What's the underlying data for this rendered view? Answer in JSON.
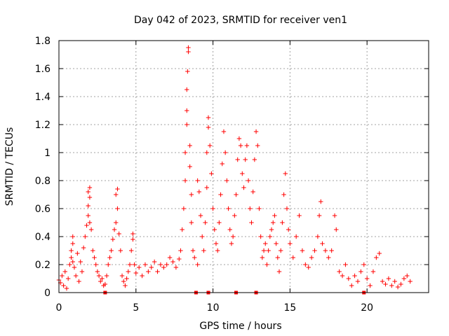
{
  "chart_data": {
    "type": "scatter",
    "title": "Day 042 of 2023, SRMTID for receiver ven1",
    "xlabel": "GPS time / hours",
    "ylabel": "SRMTID / TECUs",
    "xlim": [
      0,
      24
    ],
    "ylim": [
      0,
      1.8
    ],
    "xticks": [
      0,
      5,
      10,
      15,
      20
    ],
    "yticks": [
      0,
      0.2,
      0.4,
      0.6,
      0.8,
      1,
      1.2,
      1.4,
      1.6,
      1.8
    ],
    "xtick_labels": [
      "0",
      "5",
      "10",
      "15",
      "20"
    ],
    "ytick_labels": [
      "0",
      "0.2",
      "0.4",
      "0.6",
      "0.8",
      "1",
      "1.2",
      "1.4",
      "1.6",
      "1.8"
    ],
    "grid": true,
    "series_color": "#ff0000",
    "marker": "plus",
    "series": [
      {
        "name": "SRMTID",
        "points": [
          [
            0.0,
            0.09
          ],
          [
            0.1,
            0.07
          ],
          [
            0.2,
            0.12
          ],
          [
            0.3,
            0.05
          ],
          [
            0.4,
            0.15
          ],
          [
            0.5,
            0.03
          ],
          [
            0.6,
            0.1
          ],
          [
            0.7,
            0.2
          ],
          [
            0.8,
            0.25
          ],
          [
            0.9,
            0.22
          ],
          [
            0.8,
            0.3
          ],
          [
            0.9,
            0.35
          ],
          [
            0.9,
            0.4
          ],
          [
            1.0,
            0.18
          ],
          [
            1.1,
            0.12
          ],
          [
            1.2,
            0.28
          ],
          [
            1.3,
            0.08
          ],
          [
            1.4,
            0.22
          ],
          [
            1.5,
            0.15
          ],
          [
            1.6,
            0.32
          ],
          [
            1.7,
            0.4
          ],
          [
            1.8,
            0.48
          ],
          [
            1.9,
            0.55
          ],
          [
            1.9,
            0.62
          ],
          [
            1.9,
            0.72
          ],
          [
            2.0,
            0.68
          ],
          [
            2.0,
            0.75
          ],
          [
            2.0,
            0.5
          ],
          [
            2.1,
            0.45
          ],
          [
            2.2,
            0.3
          ],
          [
            2.3,
            0.25
          ],
          [
            2.4,
            0.2
          ],
          [
            2.5,
            0.15
          ],
          [
            2.6,
            0.12
          ],
          [
            2.7,
            0.08
          ],
          [
            2.8,
            0.1
          ],
          [
            2.9,
            0.05
          ],
          [
            3.0,
            0.06
          ],
          [
            3.1,
            0.12
          ],
          [
            3.2,
            0.2
          ],
          [
            3.3,
            0.25
          ],
          [
            3.4,
            0.3
          ],
          [
            3.5,
            0.38
          ],
          [
            3.6,
            0.45
          ],
          [
            3.7,
            0.5
          ],
          [
            3.7,
            0.7
          ],
          [
            3.8,
            0.74
          ],
          [
            3.8,
            0.6
          ],
          [
            3.9,
            0.42
          ],
          [
            4.0,
            0.3
          ],
          [
            4.1,
            0.12
          ],
          [
            4.2,
            0.08
          ],
          [
            4.3,
            0.05
          ],
          [
            4.4,
            0.1
          ],
          [
            4.5,
            0.15
          ],
          [
            4.6,
            0.2
          ],
          [
            4.7,
            0.3
          ],
          [
            4.8,
            0.38
          ],
          [
            4.8,
            0.42
          ],
          [
            4.9,
            0.2
          ],
          [
            5.0,
            0.14
          ],
          [
            5.2,
            0.18
          ],
          [
            5.4,
            0.12
          ],
          [
            5.6,
            0.2
          ],
          [
            5.8,
            0.15
          ],
          [
            6.0,
            0.18
          ],
          [
            6.2,
            0.22
          ],
          [
            6.4,
            0.15
          ],
          [
            6.6,
            0.2
          ],
          [
            6.8,
            0.18
          ],
          [
            7.0,
            0.2
          ],
          [
            7.2,
            0.25
          ],
          [
            7.4,
            0.22
          ],
          [
            7.6,
            0.18
          ],
          [
            7.8,
            0.24
          ],
          [
            7.9,
            0.3
          ],
          [
            8.0,
            0.45
          ],
          [
            8.1,
            0.6
          ],
          [
            8.2,
            0.8
          ],
          [
            8.2,
            1.0
          ],
          [
            8.3,
            1.2
          ],
          [
            8.3,
            1.3
          ],
          [
            8.3,
            1.45
          ],
          [
            8.35,
            1.58
          ],
          [
            8.4,
            1.72
          ],
          [
            8.4,
            1.75
          ],
          [
            8.5,
            1.05
          ],
          [
            8.5,
            0.9
          ],
          [
            8.6,
            0.7
          ],
          [
            8.6,
            0.5
          ],
          [
            8.7,
            0.3
          ],
          [
            8.8,
            0.25
          ],
          [
            9.0,
            0.2
          ],
          [
            9.0,
            0.8
          ],
          [
            9.1,
            0.72
          ],
          [
            9.2,
            0.55
          ],
          [
            9.3,
            0.4
          ],
          [
            9.4,
            0.3
          ],
          [
            9.5,
            0.5
          ],
          [
            9.6,
            0.75
          ],
          [
            9.6,
            1.0
          ],
          [
            9.7,
            1.18
          ],
          [
            9.7,
            1.25
          ],
          [
            9.8,
            1.05
          ],
          [
            9.9,
            0.85
          ],
          [
            10.0,
            0.6
          ],
          [
            10.1,
            0.45
          ],
          [
            10.2,
            0.35
          ],
          [
            10.3,
            0.3
          ],
          [
            10.4,
            0.5
          ],
          [
            10.5,
            0.7
          ],
          [
            10.6,
            0.92
          ],
          [
            10.7,
            1.15
          ],
          [
            10.8,
            1.0
          ],
          [
            10.9,
            0.8
          ],
          [
            11.0,
            0.6
          ],
          [
            11.1,
            0.45
          ],
          [
            11.2,
            0.35
          ],
          [
            11.3,
            0.4
          ],
          [
            11.4,
            0.55
          ],
          [
            11.5,
            0.7
          ],
          [
            11.6,
            0.95
          ],
          [
            11.7,
            1.1
          ],
          [
            11.8,
            1.05
          ],
          [
            11.9,
            0.85
          ],
          [
            12.0,
            0.75
          ],
          [
            12.1,
            0.95
          ],
          [
            12.2,
            1.05
          ],
          [
            12.3,
            0.8
          ],
          [
            12.4,
            0.6
          ],
          [
            12.5,
            0.5
          ],
          [
            12.6,
            0.72
          ],
          [
            12.7,
            0.95
          ],
          [
            12.8,
            1.15
          ],
          [
            12.9,
            1.05
          ],
          [
            13.0,
            0.6
          ],
          [
            13.1,
            0.4
          ],
          [
            13.2,
            0.25
          ],
          [
            13.3,
            0.3
          ],
          [
            13.4,
            0.35
          ],
          [
            13.5,
            0.2
          ],
          [
            13.6,
            0.3
          ],
          [
            13.7,
            0.4
          ],
          [
            13.8,
            0.45
          ],
          [
            13.9,
            0.5
          ],
          [
            14.0,
            0.55
          ],
          [
            14.1,
            0.35
          ],
          [
            14.2,
            0.25
          ],
          [
            14.3,
            0.15
          ],
          [
            14.4,
            0.3
          ],
          [
            14.5,
            0.5
          ],
          [
            14.6,
            0.7
          ],
          [
            14.7,
            0.85
          ],
          [
            14.8,
            0.6
          ],
          [
            14.9,
            0.45
          ],
          [
            15.0,
            0.35
          ],
          [
            15.2,
            0.25
          ],
          [
            15.4,
            0.4
          ],
          [
            15.6,
            0.55
          ],
          [
            15.8,
            0.3
          ],
          [
            16.0,
            0.2
          ],
          [
            16.2,
            0.18
          ],
          [
            16.4,
            0.25
          ],
          [
            16.6,
            0.3
          ],
          [
            16.8,
            0.4
          ],
          [
            16.9,
            0.55
          ],
          [
            17.0,
            0.65
          ],
          [
            17.1,
            0.35
          ],
          [
            17.3,
            0.3
          ],
          [
            17.5,
            0.25
          ],
          [
            17.7,
            0.3
          ],
          [
            17.9,
            0.55
          ],
          [
            18.0,
            0.45
          ],
          [
            18.2,
            0.15
          ],
          [
            18.4,
            0.12
          ],
          [
            18.6,
            0.2
          ],
          [
            18.8,
            0.1
          ],
          [
            19.0,
            0.05
          ],
          [
            19.2,
            0.12
          ],
          [
            19.4,
            0.08
          ],
          [
            19.6,
            0.15
          ],
          [
            19.8,
            0.2
          ],
          [
            20.0,
            0.1
          ],
          [
            20.2,
            0.05
          ],
          [
            20.4,
            0.15
          ],
          [
            20.6,
            0.25
          ],
          [
            20.8,
            0.28
          ],
          [
            21.0,
            0.08
          ],
          [
            21.2,
            0.06
          ],
          [
            21.4,
            0.1
          ],
          [
            21.6,
            0.05
          ],
          [
            21.8,
            0.08
          ],
          [
            22.0,
            0.04
          ],
          [
            22.2,
            0.06
          ],
          [
            22.4,
            0.1
          ],
          [
            22.6,
            0.12
          ],
          [
            22.8,
            0.08
          ]
        ]
      }
    ],
    "zero_markers_x": [
      3.0,
      8.9,
      9.7,
      11.5,
      12.8,
      19.8
    ]
  }
}
